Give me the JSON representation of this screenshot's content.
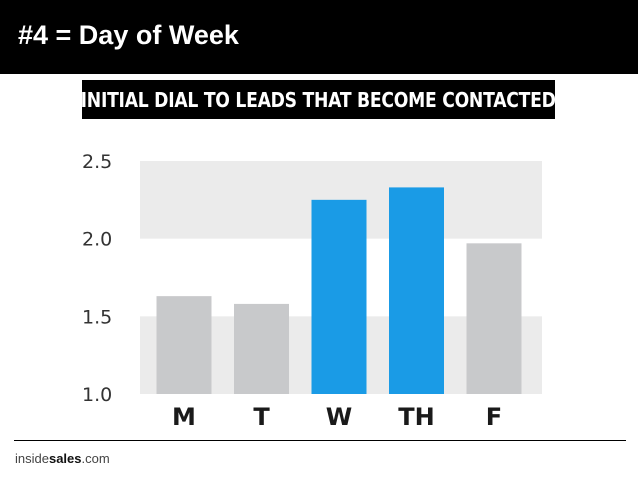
{
  "slide": {
    "title": "#4 = Day of Week"
  },
  "brand": {
    "part1": "inside",
    "part2": "sales",
    "part3": ".com"
  },
  "colors": {
    "header_bg": "#000000",
    "highlight_bar": "#1a9be6",
    "normal_bar": "#c8c9cb",
    "band": "#ebebeb"
  },
  "chart_data": {
    "type": "bar",
    "title": "INITIAL DIAL TO LEADS THAT BECOME CONTACTED",
    "categories": [
      "M",
      "T",
      "W",
      "TH",
      "F"
    ],
    "values": [
      1.63,
      1.58,
      2.25,
      2.33,
      1.97
    ],
    "highlighted": [
      false,
      false,
      true,
      true,
      false
    ],
    "ylim": [
      1.0,
      2.5
    ],
    "yticks": [
      "1.0",
      "1.5",
      "2.0",
      "2.5"
    ],
    "xlabel": "",
    "ylabel": "",
    "grid": "alternating horizontal bands"
  }
}
